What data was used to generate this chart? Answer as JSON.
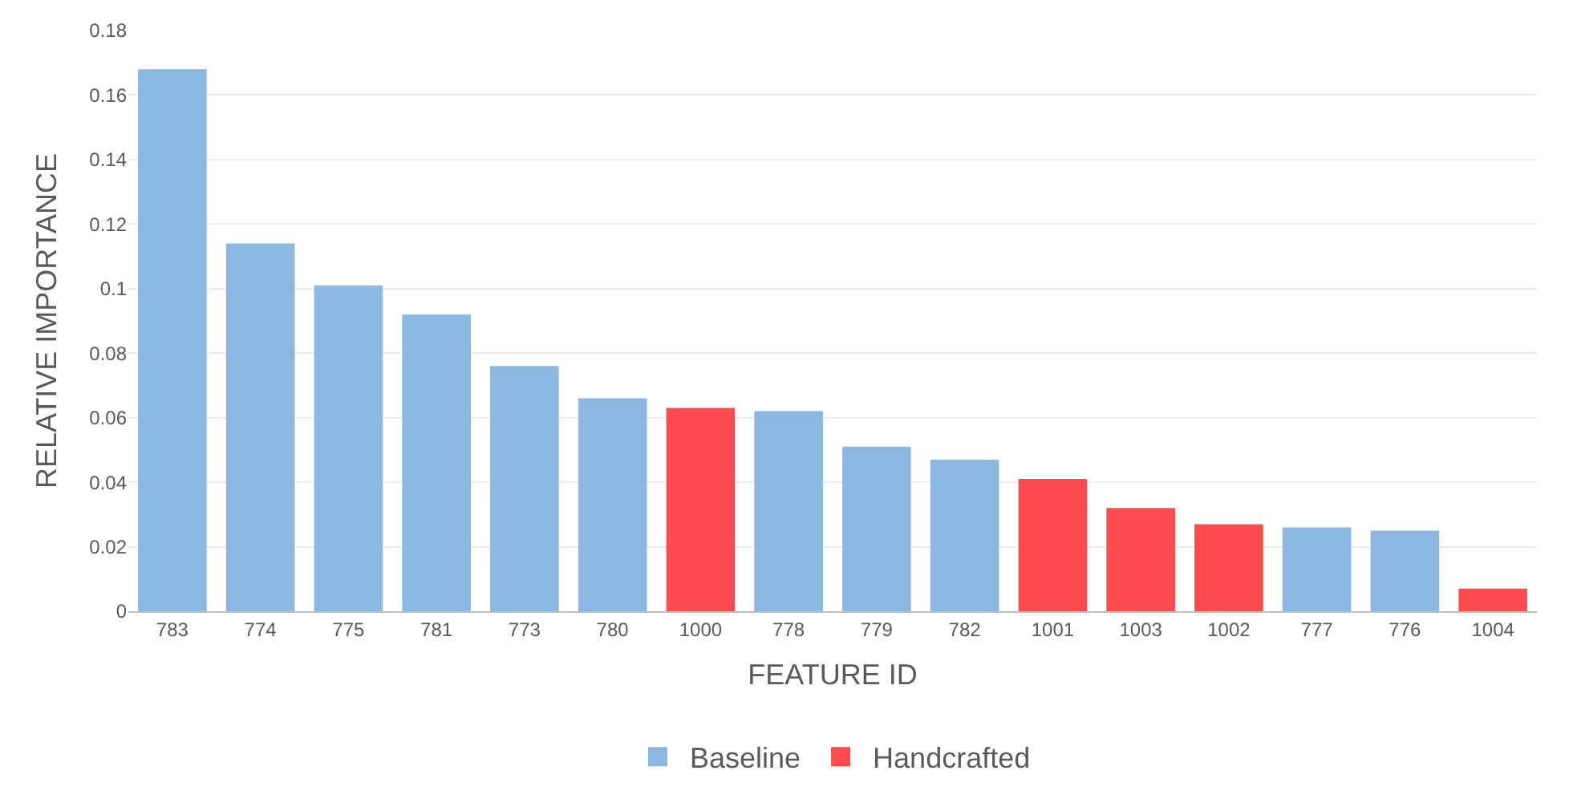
{
  "chart_data": {
    "type": "bar",
    "xlabel": "FEATURE ID",
    "ylabel": "RELATIVE IMPORTANCE",
    "categories": [
      "783",
      "774",
      "775",
      "781",
      "773",
      "780",
      "1000",
      "778",
      "779",
      "782",
      "1001",
      "1003",
      "1002",
      "777",
      "776",
      "1004"
    ],
    "series": [
      {
        "name": "Baseline",
        "color": "#8cb7e0",
        "values": [
          0.168,
          0.114,
          0.101,
          0.092,
          0.076,
          0.066,
          null,
          0.062,
          0.051,
          0.047,
          null,
          null,
          null,
          0.026,
          0.025,
          null
        ]
      },
      {
        "name": "Handcrafted",
        "color": "#ff4d4f",
        "values": [
          null,
          null,
          null,
          null,
          null,
          null,
          0.063,
          null,
          null,
          null,
          0.041,
          0.032,
          0.027,
          null,
          null,
          0.007
        ]
      }
    ],
    "ylim": [
      0,
      0.18
    ],
    "yticks": [
      {
        "value": 0,
        "label": "0"
      },
      {
        "value": 0.02,
        "label": "0.02"
      },
      {
        "value": 0.04,
        "label": "0.04"
      },
      {
        "value": 0.06,
        "label": "0.06"
      },
      {
        "value": 0.08,
        "label": "0.08"
      },
      {
        "value": 0.1,
        "label": "0.1"
      },
      {
        "value": 0.12,
        "label": "0.12"
      },
      {
        "value": 0.14,
        "label": "0.14"
      },
      {
        "value": 0.16,
        "label": "0.16"
      },
      {
        "value": 0.18,
        "label": "0.18"
      }
    ],
    "grid": "y",
    "legend": "bottom"
  }
}
